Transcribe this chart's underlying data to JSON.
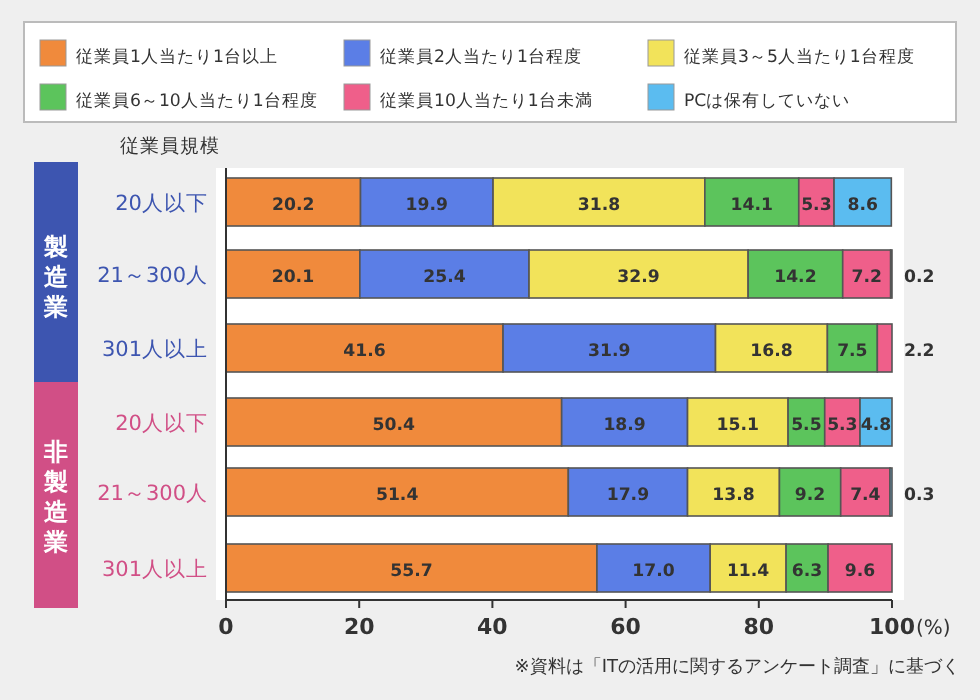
{
  "chart_data": {
    "type": "bar",
    "orientation": "horizontal",
    "stacked": true,
    "data_labels": true,
    "legend": "top",
    "categories": [
      "20人以下",
      "21～300人",
      "301人以上",
      "20人以下",
      "21～300人",
      "301人以上"
    ],
    "series": [
      {
        "name": "従業員1人当たり1台以上",
        "color": "#f08a3c",
        "values": [
          20.2,
          20.1,
          41.6,
          50.4,
          51.4,
          55.7
        ]
      },
      {
        "name": "従業員2人当たり1台程度",
        "color": "#5b7ee6",
        "values": [
          19.9,
          25.4,
          31.9,
          18.9,
          17.9,
          17.0
        ],
        "value_labels": [
          "19.9",
          "25.4",
          "31.9",
          "18.9",
          "17.9",
          "17.0"
        ]
      },
      {
        "name": "従業員3～5人当たり1台程度",
        "color": "#f2e35a",
        "values": [
          31.8,
          32.9,
          16.8,
          15.1,
          13.8,
          11.4
        ]
      },
      {
        "name": "従業員6～10人当たり1台程度",
        "color": "#5cc45c",
        "values": [
          14.1,
          14.2,
          7.5,
          5.5,
          9.2,
          6.3
        ]
      },
      {
        "name": "従業員10人当たり1台未満",
        "color": "#ef5f8a",
        "values": [
          5.3,
          7.2,
          2.2,
          5.3,
          7.4,
          9.6
        ]
      },
      {
        "name": "PCは保有していない",
        "color": "#5bbcf0",
        "values": [
          8.6,
          0.2,
          null,
          4.8,
          0.3,
          null
        ]
      }
    ],
    "xlim": [
      0,
      100
    ],
    "xticks": [
      0,
      20,
      40,
      60,
      80,
      100
    ],
    "xlabel": "(%)",
    "annotations": [
      "従業員規模",
      "製造業",
      "非製造業",
      "※資料は「ITの活用に関するアンケート調査」に基づく"
    ]
  }
}
